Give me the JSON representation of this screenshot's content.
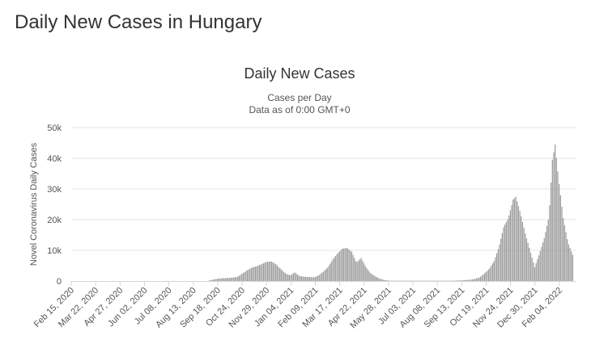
{
  "page": {
    "heading": "Daily New Cases in Hungary"
  },
  "colors": {
    "bar": "#999999",
    "grid": "#e6e6e6",
    "axis": "#ccd6eb"
  },
  "chart_data": {
    "type": "bar",
    "title": "Daily New Cases",
    "subtitle_lines": [
      "Cases per Day",
      "Data as of 0:00 GMT+0"
    ],
    "ylabel": "Novel Coronavirus Daily Cases",
    "xlabel": "",
    "ylim": [
      0,
      50000
    ],
    "y_ticks": [
      0,
      10000,
      20000,
      30000,
      40000,
      50000
    ],
    "y_tick_labels": [
      "0",
      "10k",
      "20k",
      "30k",
      "40k",
      "50k"
    ],
    "x_range": [
      "2020-02-15",
      "2022-02-28"
    ],
    "x_tick_dates": [
      "2020-02-15",
      "2020-03-22",
      "2020-04-27",
      "2020-06-02",
      "2020-07-08",
      "2020-08-13",
      "2020-09-18",
      "2020-10-24",
      "2020-11-29",
      "2021-01-04",
      "2021-02-09",
      "2021-03-17",
      "2021-04-22",
      "2021-05-28",
      "2021-07-03",
      "2021-08-08",
      "2021-09-13",
      "2021-10-19",
      "2021-11-24",
      "2021-12-30",
      "2022-02-04"
    ],
    "x_tick_labels": [
      "Feb 15, 2020",
      "Mar 22, 2020",
      "Apr 27, 2020",
      "Jun 02, 2020",
      "Jul 08, 2020",
      "Aug 13, 2020",
      "Sep 18, 2020",
      "Oct 24, 2020",
      "Nov 29, 2020",
      "Jan 04, 2021",
      "Feb 09, 2021",
      "Mar 17, 2021",
      "Apr 22, 2021",
      "May 28, 2021",
      "Jul 03, 2021",
      "Aug 08, 2021",
      "Sep 13, 2021",
      "Oct 19, 2021",
      "Nov 24, 2021",
      "Dec 30, 2021",
      "Feb 04, 2022"
    ],
    "grid": true,
    "legend": "none",
    "series": [
      {
        "values": [
          {
            "date": "2020-09-05",
            "value": 200
          },
          {
            "date": "2020-09-12",
            "value": 500
          },
          {
            "date": "2020-09-19",
            "value": 800
          },
          {
            "date": "2020-09-26",
            "value": 900
          },
          {
            "date": "2020-10-03",
            "value": 1000
          },
          {
            "date": "2020-10-10",
            "value": 1100
          },
          {
            "date": "2020-10-17",
            "value": 1400
          },
          {
            "date": "2020-10-24",
            "value": 2500
          },
          {
            "date": "2020-10-31",
            "value": 3500
          },
          {
            "date": "2020-11-07",
            "value": 4400
          },
          {
            "date": "2020-11-14",
            "value": 4800
          },
          {
            "date": "2020-11-21",
            "value": 5500
          },
          {
            "date": "2020-11-28",
            "value": 6200
          },
          {
            "date": "2020-12-05",
            "value": 6400
          },
          {
            "date": "2020-12-12",
            "value": 5500
          },
          {
            "date": "2020-12-19",
            "value": 4000
          },
          {
            "date": "2020-12-26",
            "value": 2500
          },
          {
            "date": "2021-01-02",
            "value": 1800
          },
          {
            "date": "2021-01-09",
            "value": 2800
          },
          {
            "date": "2021-01-16",
            "value": 1600
          },
          {
            "date": "2021-01-23",
            "value": 1400
          },
          {
            "date": "2021-01-30",
            "value": 1300
          },
          {
            "date": "2021-02-06",
            "value": 1200
          },
          {
            "date": "2021-02-13",
            "value": 1800
          },
          {
            "date": "2021-02-20",
            "value": 3000
          },
          {
            "date": "2021-02-27",
            "value": 4500
          },
          {
            "date": "2021-03-06",
            "value": 7000
          },
          {
            "date": "2021-03-13",
            "value": 9000
          },
          {
            "date": "2021-03-20",
            "value": 10500
          },
          {
            "date": "2021-03-27",
            "value": 10800
          },
          {
            "date": "2021-04-03",
            "value": 9500
          },
          {
            "date": "2021-04-10",
            "value": 6000
          },
          {
            "date": "2021-04-17",
            "value": 7500
          },
          {
            "date": "2021-04-24",
            "value": 4500
          },
          {
            "date": "2021-05-01",
            "value": 2500
          },
          {
            "date": "2021-05-08",
            "value": 1500
          },
          {
            "date": "2021-05-15",
            "value": 700
          },
          {
            "date": "2021-05-22",
            "value": 300
          },
          {
            "date": "2021-05-29",
            "value": 100
          },
          {
            "date": "2021-08-28",
            "value": 100
          },
          {
            "date": "2021-09-11",
            "value": 200
          },
          {
            "date": "2021-09-18",
            "value": 300
          },
          {
            "date": "2021-09-25",
            "value": 400
          },
          {
            "date": "2021-10-02",
            "value": 700
          },
          {
            "date": "2021-10-09",
            "value": 1200
          },
          {
            "date": "2021-10-16",
            "value": 2500
          },
          {
            "date": "2021-10-23",
            "value": 4000
          },
          {
            "date": "2021-10-30",
            "value": 6500
          },
          {
            "date": "2021-11-06",
            "value": 11000
          },
          {
            "date": "2021-11-13",
            "value": 17500
          },
          {
            "date": "2021-11-20",
            "value": 20500
          },
          {
            "date": "2021-11-27",
            "value": 26500
          },
          {
            "date": "2021-12-01",
            "value": 27500
          },
          {
            "date": "2021-12-08",
            "value": 22000
          },
          {
            "date": "2021-12-15",
            "value": 15500
          },
          {
            "date": "2021-12-22",
            "value": 10000
          },
          {
            "date": "2021-12-29",
            "value": 4500
          },
          {
            "date": "2022-01-05",
            "value": 9000
          },
          {
            "date": "2022-01-12",
            "value": 14000
          },
          {
            "date": "2022-01-19",
            "value": 21000
          },
          {
            "date": "2022-01-24",
            "value": 39500
          },
          {
            "date": "2022-01-28",
            "value": 44500
          },
          {
            "date": "2022-02-02",
            "value": 33500
          },
          {
            "date": "2022-02-09",
            "value": 20500
          },
          {
            "date": "2022-02-16",
            "value": 12500
          },
          {
            "date": "2022-02-23",
            "value": 8500
          }
        ]
      }
    ]
  }
}
